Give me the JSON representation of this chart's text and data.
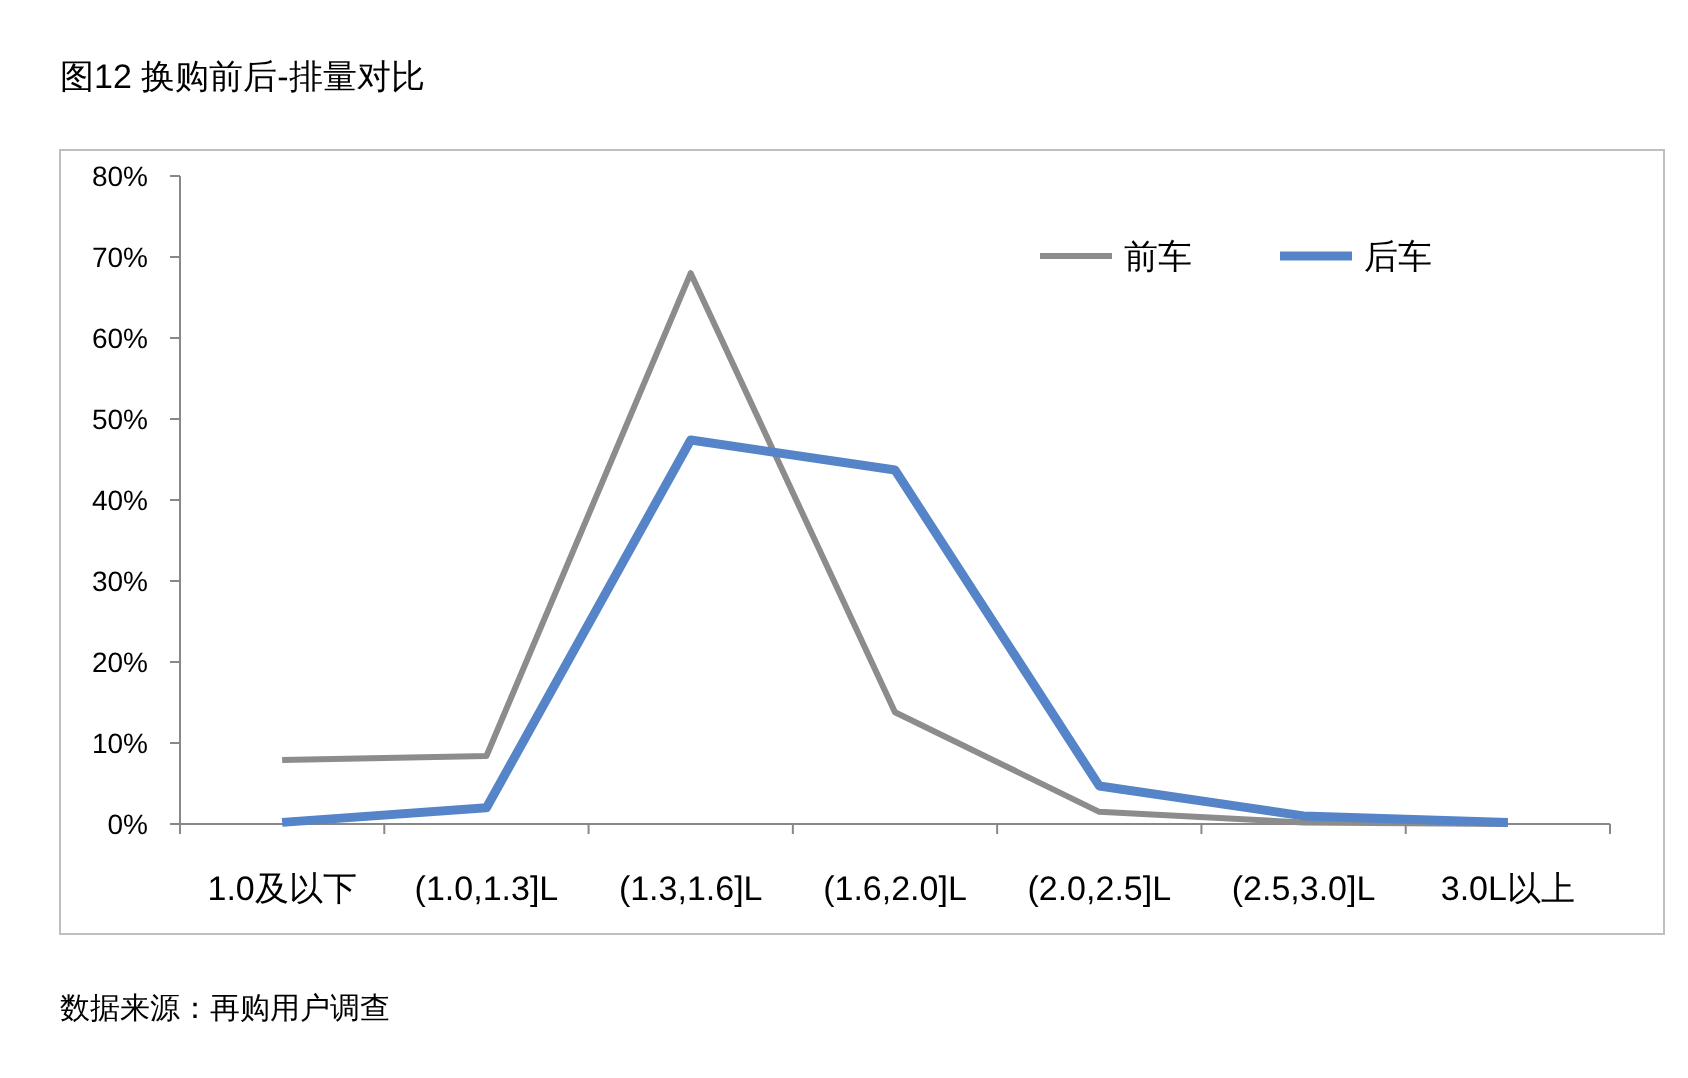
{
  "chart_data": {
    "type": "line",
    "title": "图12  换购前后-排量对比",
    "categories": [
      "1.0及以下",
      "(1.0,1.3]L",
      "(1.3,1.6]L",
      "(1.6,2.0]L",
      "(2.0,2.5]L",
      "(2.5,3.0]L",
      "3.0L以上"
    ],
    "series": [
      {
        "name": "前车",
        "color": "#8c8c8c",
        "values": [
          7.9,
          8.4,
          68,
          13.8,
          1.5,
          0.2,
          0
        ]
      },
      {
        "name": "后车",
        "color": "#5585c8",
        "values": [
          0.2,
          2,
          47.4,
          43.7,
          4.7,
          1,
          0.2
        ]
      }
    ],
    "ylim": [
      0,
      80
    ],
    "yticks": [
      {
        "value": 0,
        "label": "0%"
      },
      {
        "value": 10,
        "label": "10%"
      },
      {
        "value": 20,
        "label": "20%"
      },
      {
        "value": 30,
        "label": "30%"
      },
      {
        "value": 40,
        "label": "40%"
      },
      {
        "value": 50,
        "label": "50%"
      },
      {
        "value": 60,
        "label": "60%"
      },
      {
        "value": 70,
        "label": "70%"
      },
      {
        "value": 80,
        "label": "80%"
      }
    ],
    "legend": "top right",
    "grid": false,
    "annotations": [
      "数据来源：再购用户调查"
    ]
  }
}
